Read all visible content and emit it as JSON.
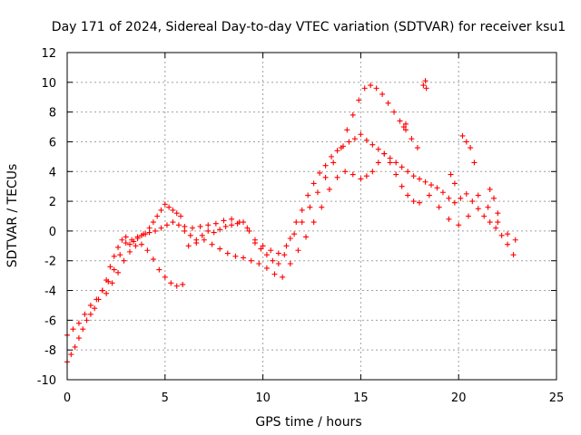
{
  "chart_data": {
    "type": "scatter",
    "title": "Day 171 of 2024, Sidereal Day-to-day VTEC variation (SDTVAR) for receiver ksu1",
    "xlabel": "GPS time / hours",
    "ylabel": "SDTVAR / TECUs",
    "xlim": [
      0,
      25
    ],
    "ylim": [
      -10,
      12
    ],
    "xticks": [
      "0",
      "5",
      "10",
      "15",
      "20",
      "25"
    ],
    "yticks": [
      "-10",
      "-8",
      "-6",
      "-4",
      "-2",
      "0",
      "2",
      "4",
      "6",
      "8",
      "10",
      "12"
    ],
    "grid": true,
    "marker": "plus",
    "color": "#ff0000",
    "series": [
      {
        "name": "main",
        "x": [
          0.0,
          0.2,
          0.4,
          0.6,
          0.8,
          1.0,
          1.2,
          1.4,
          1.6,
          1.8,
          2.0,
          2.2,
          2.4,
          2.6,
          2.8,
          3.0,
          3.2,
          3.4,
          3.6,
          3.8,
          4.0,
          4.2,
          4.4,
          4.6,
          4.8,
          5.0,
          5.2,
          5.4,
          5.6,
          5.8,
          6.0,
          6.3,
          6.6,
          6.9,
          7.2,
          7.5,
          7.8,
          8.1,
          8.4,
          8.7,
          9.0,
          9.3,
          9.6,
          9.9,
          10.2,
          10.5,
          10.8,
          11.1,
          11.4,
          11.7,
          12.0,
          12.3,
          12.6,
          12.9,
          13.2,
          13.5,
          13.8,
          14.1,
          14.4,
          14.7,
          15.0,
          15.3,
          15.6,
          15.9,
          16.2,
          16.5,
          16.8,
          17.1,
          17.4,
          17.7,
          18.0,
          18.3,
          18.6,
          18.9,
          19.2,
          19.5,
          19.8,
          20.1,
          20.4,
          20.7,
          21.0,
          21.3,
          21.6,
          21.9,
          22.2,
          22.5,
          22.8
        ],
        "y": [
          -8.8,
          -8.3,
          -7.8,
          -7.2,
          -6.6,
          -6.0,
          -5.6,
          -5.2,
          -4.6,
          -4.0,
          -3.3,
          -2.4,
          -1.7,
          -1.1,
          -0.6,
          -0.4,
          -0.9,
          -0.7,
          -0.5,
          -0.3,
          -0.2,
          0.2,
          0.6,
          1.0,
          1.4,
          1.8,
          1.6,
          1.4,
          1.2,
          1.0,
          0.0,
          -0.3,
          -0.6,
          -0.3,
          0.0,
          -0.1,
          0.1,
          0.3,
          0.4,
          0.5,
          0.6,
          0.0,
          -0.8,
          -1.2,
          -1.6,
          -2.0,
          -2.2,
          -1.6,
          -0.5,
          0.6,
          1.4,
          2.4,
          3.2,
          3.9,
          4.4,
          5.0,
          5.4,
          5.7,
          6.0,
          6.2,
          6.5,
          6.1,
          5.8,
          5.5,
          5.2,
          4.9,
          4.6,
          4.3,
          4.0,
          3.7,
          3.5,
          3.3,
          3.1,
          2.9,
          2.6,
          2.2,
          1.9,
          2.2,
          2.5,
          2.0,
          1.5,
          1.0,
          0.6,
          0.2,
          -0.3,
          -0.9,
          -1.6
        ]
      },
      {
        "name": "upper",
        "x": [
          0.0,
          0.3,
          0.6,
          0.9,
          1.2,
          1.5,
          1.8,
          2.1,
          2.4,
          2.7,
          3.0,
          3.3,
          3.6,
          3.9,
          4.2,
          4.5,
          4.8,
          5.1,
          5.4,
          5.7,
          6.0,
          6.4,
          6.8,
          7.2,
          7.6,
          8.0,
          8.4,
          8.8,
          9.2,
          9.6,
          10.0,
          10.4,
          10.8,
          11.2,
          11.6,
          12.0,
          12.4,
          12.8,
          13.2,
          13.6,
          14.0,
          14.3,
          14.6,
          14.9,
          15.2,
          15.5,
          15.8,
          16.1,
          16.4,
          16.7,
          17.0,
          17.3,
          17.6,
          17.9
        ],
        "y": [
          -7.0,
          -6.6,
          -6.2,
          -5.6,
          -5.0,
          -4.6,
          -4.0,
          -3.4,
          -2.6,
          -1.6,
          -0.8,
          -0.6,
          -0.4,
          -0.2,
          -0.1,
          0.0,
          0.2,
          0.4,
          0.6,
          0.4,
          0.3,
          0.2,
          0.3,
          0.4,
          0.5,
          0.7,
          0.8,
          0.6,
          0.2,
          -0.6,
          -1.0,
          -1.3,
          -1.5,
          -1.0,
          -0.2,
          0.6,
          1.6,
          2.6,
          3.6,
          4.6,
          5.6,
          6.8,
          7.8,
          8.8,
          9.6,
          9.8,
          9.6,
          9.2,
          8.6,
          8.0,
          7.4,
          6.8,
          6.2,
          5.6
        ]
      },
      {
        "name": "lower",
        "x": [
          2.0,
          2.3,
          2.6,
          2.9,
          3.2,
          3.5,
          3.8,
          4.1,
          4.4,
          4.7,
          5.0,
          5.3,
          5.6,
          5.9,
          6.2,
          6.6,
          7.0,
          7.4,
          7.8,
          8.2,
          8.6,
          9.0,
          9.4,
          9.8,
          10.2,
          10.6,
          11.0,
          11.4,
          11.8,
          12.2,
          12.6,
          13.0,
          13.4,
          13.8,
          14.2,
          14.6,
          15.0,
          15.3,
          15.6,
          15.9,
          16.2,
          16.5,
          16.8,
          17.1,
          17.4,
          17.7,
          18.0,
          18.5,
          19.0,
          19.5,
          20.0,
          20.5,
          21.0,
          21.5,
          22.0,
          22.5,
          22.9
        ],
        "y": [
          -4.2,
          -3.5,
          -2.8,
          -2.0,
          -1.4,
          -1.0,
          -0.9,
          -1.3,
          -1.9,
          -2.6,
          -3.1,
          -3.5,
          -3.7,
          -3.6,
          -1.0,
          -0.8,
          -0.6,
          -0.9,
          -1.2,
          -1.5,
          -1.7,
          -1.8,
          -2.0,
          -2.2,
          -2.5,
          -2.9,
          -3.1,
          -2.2,
          -1.3,
          -0.4,
          0.6,
          1.6,
          2.8,
          3.6,
          4.0,
          3.8,
          3.5,
          3.7,
          4.0,
          4.6,
          5.2,
          4.6,
          3.8,
          3.0,
          2.4,
          2.0,
          1.9,
          2.4,
          1.6,
          0.8,
          0.4,
          1.0,
          2.4,
          1.6,
          0.6,
          -0.2,
          -0.6
        ]
      },
      {
        "name": "segments",
        "x": [
          18.2,
          18.3,
          18.35,
          17.2,
          17.3,
          19.6,
          19.8,
          20.2,
          20.4,
          20.6,
          20.8,
          21.6,
          21.8,
          22.0
        ],
        "y": [
          9.8,
          10.1,
          9.6,
          7.0,
          7.2,
          3.8,
          3.2,
          6.4,
          6.0,
          5.6,
          4.6,
          2.8,
          2.2,
          1.2
        ]
      }
    ]
  }
}
